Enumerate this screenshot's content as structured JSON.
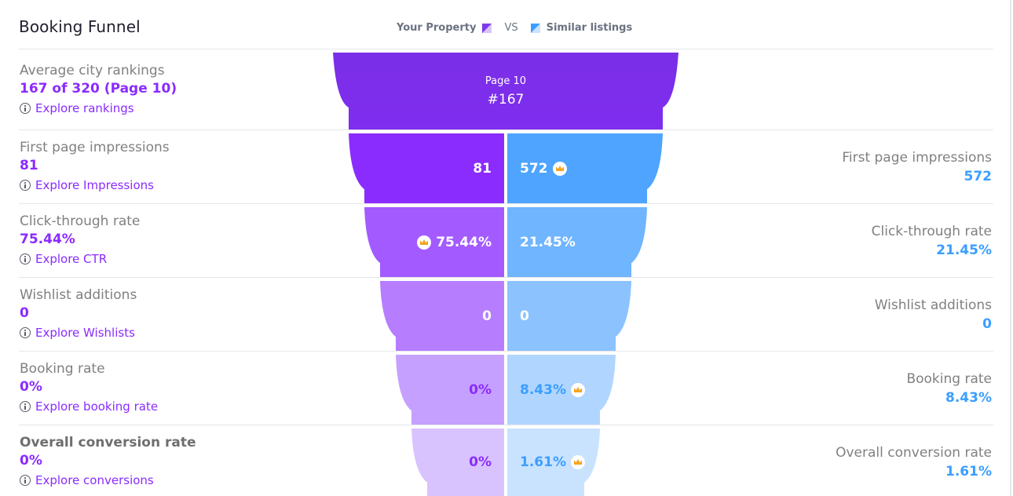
{
  "header": {
    "title": "Booking Funnel",
    "legend": {
      "own_label": "Your Property",
      "vs_label": "VS",
      "similar_label": "Similar listings"
    }
  },
  "colors": {
    "own_accent": "#8a2bff",
    "similar_accent": "#3b9eff",
    "crown": "#f5a623"
  },
  "rank": {
    "label": "Average city rankings",
    "value": "167 of 320 (Page 10)",
    "link": "Explore rankings",
    "funnel_page": "Page 10",
    "funnel_rank": "#167"
  },
  "rows": [
    {
      "label": "First page impressions",
      "own_value": "81",
      "link": "Explore Impressions",
      "similar_label": "First page impressions",
      "similar_value": "572",
      "funnel_own": "81",
      "funnel_similar": "572",
      "winner": "similar"
    },
    {
      "label": "Click-through rate",
      "own_value": "75.44%",
      "link": "Explore CTR",
      "similar_label": "Click-through rate",
      "similar_value": "21.45%",
      "funnel_own": "75.44%",
      "funnel_similar": "21.45%",
      "winner": "own"
    },
    {
      "label": "Wishlist additions",
      "own_value": "0",
      "link": "Explore Wishlists",
      "similar_label": "Wishlist additions",
      "similar_value": "0",
      "funnel_own": "0",
      "funnel_similar": "0",
      "winner": "none"
    },
    {
      "label": "Booking rate",
      "own_value": "0%",
      "link": "Explore booking rate",
      "similar_label": "Booking rate",
      "similar_value": "8.43%",
      "funnel_own": "0%",
      "funnel_similar": "8.43%",
      "winner": "similar"
    },
    {
      "label": "Overall conversion rate",
      "own_value": "0%",
      "link": "Explore conversions",
      "similar_label": "Overall conversion rate",
      "similar_value": "1.61%",
      "funnel_own": "0%",
      "funnel_similar": "1.61%",
      "winner": "similar"
    }
  ]
}
